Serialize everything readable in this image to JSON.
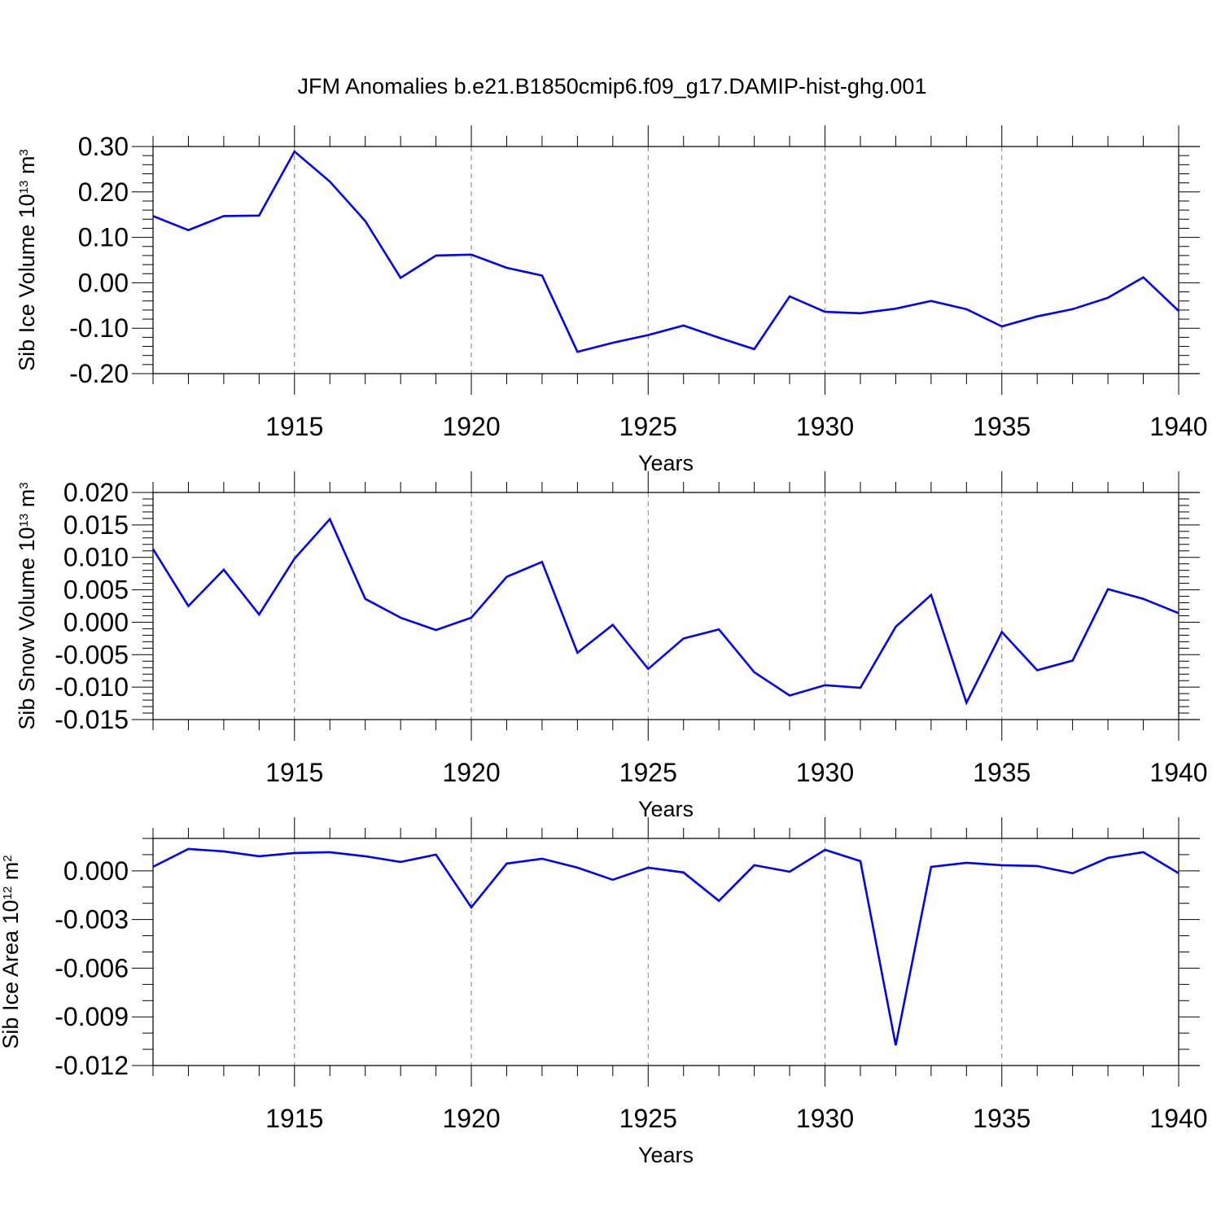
{
  "title": "JFM Anomalies b.e21.B1850cmip6.f09_g17.DAMIP-hist-ghg.001",
  "colors": {
    "line": "#0000ff",
    "axis": "#000000",
    "grid": "#7f7f7f"
  },
  "chart_data": [
    {
      "type": "line",
      "ylabel": {
        "base": "Sib Ice Volume 10",
        "exp": "13",
        "unit": " m",
        "unit_exp": "3"
      },
      "xlabel": "Years",
      "xlim": [
        1911,
        1940
      ],
      "ylim": [
        -0.2,
        0.3
      ],
      "yticks": [
        -0.2,
        -0.1,
        0.0,
        0.1,
        0.2,
        0.3
      ],
      "ytick_labels": [
        "-0.20",
        "-0.10",
        "0.00",
        "0.10",
        "0.20",
        "0.30"
      ],
      "xticks": [
        1915,
        1920,
        1925,
        1930,
        1935,
        1940
      ],
      "xtick_labels": [
        "1915",
        "1920",
        "1925",
        "1930",
        "1935",
        "1940"
      ],
      "grid": "vertical dashed at major x ticks",
      "x": [
        1911,
        1912,
        1913,
        1914,
        1915,
        1916,
        1917,
        1918,
        1919,
        1920,
        1921,
        1922,
        1923,
        1924,
        1925,
        1926,
        1927,
        1928,
        1929,
        1930,
        1931,
        1932,
        1933,
        1934,
        1935,
        1936,
        1937,
        1938,
        1939,
        1940
      ],
      "values": [
        0.147,
        0.116,
        0.147,
        0.148,
        0.289,
        0.223,
        0.136,
        0.011,
        0.06,
        0.062,
        0.033,
        0.016,
        -0.152,
        -0.132,
        -0.115,
        -0.094,
        -0.121,
        -0.146,
        -0.03,
        -0.064,
        -0.067,
        -0.057,
        -0.04,
        -0.058,
        -0.096,
        -0.074,
        -0.058,
        -0.033,
        0.012,
        -0.062
      ]
    },
    {
      "type": "line",
      "ylabel": {
        "base": "Sib Snow Volume 10",
        "exp": "13",
        "unit": " m",
        "unit_exp": "3"
      },
      "xlabel": "Years",
      "xlim": [
        1911,
        1940
      ],
      "ylim": [
        -0.015,
        0.02
      ],
      "yticks": [
        -0.015,
        -0.01,
        -0.005,
        0.0,
        0.005,
        0.01,
        0.015,
        0.02
      ],
      "ytick_labels": [
        "-0.015",
        "-0.010",
        "-0.005",
        "0.000",
        "0.005",
        "0.010",
        "0.015",
        "0.020"
      ],
      "xticks": [
        1915,
        1920,
        1925,
        1930,
        1935,
        1940
      ],
      "xtick_labels": [
        "1915",
        "1920",
        "1925",
        "1930",
        "1935",
        "1940"
      ],
      "grid": "vertical dashed at major x ticks",
      "x": [
        1911,
        1912,
        1913,
        1914,
        1915,
        1916,
        1917,
        1918,
        1919,
        1920,
        1921,
        1922,
        1923,
        1924,
        1925,
        1926,
        1927,
        1928,
        1929,
        1930,
        1931,
        1932,
        1933,
        1934,
        1935,
        1936,
        1937,
        1938,
        1939,
        1940
      ],
      "values": [
        0.0113,
        0.0025,
        0.0081,
        0.0012,
        0.0098,
        0.0159,
        0.0036,
        0.0007,
        -0.0012,
        0.0007,
        0.007,
        0.0093,
        -0.0047,
        -0.0004,
        -0.0072,
        -0.0025,
        -0.0011,
        -0.0077,
        -0.0113,
        -0.0097,
        -0.0101,
        -0.0007,
        0.0042,
        -0.0124,
        -0.0015,
        -0.0074,
        -0.0059,
        0.0051,
        0.0036,
        0.0014
      ]
    },
    {
      "type": "line",
      "ylabel": {
        "base": "Sib Ice Area 10",
        "exp": "12",
        "unit": " m",
        "unit_exp": "2"
      },
      "xlabel": "Years",
      "xlim": [
        1911,
        1940
      ],
      "ylim": [
        -0.012,
        0.002
      ],
      "yticks": [
        -0.012,
        -0.009,
        -0.006,
        -0.003,
        0.0
      ],
      "ytick_labels": [
        "-0.012",
        "-0.009",
        "-0.006",
        "-0.003",
        "0.000"
      ],
      "xticks": [
        1915,
        1920,
        1925,
        1930,
        1935,
        1940
      ],
      "xtick_labels": [
        "1915",
        "1920",
        "1925",
        "1930",
        "1935",
        "1940"
      ],
      "grid": "vertical dashed at major x ticks",
      "x": [
        1911,
        1912,
        1913,
        1914,
        1915,
        1916,
        1917,
        1918,
        1919,
        1920,
        1921,
        1922,
        1923,
        1924,
        1925,
        1926,
        1927,
        1928,
        1929,
        1930,
        1931,
        1932,
        1933,
        1934,
        1935,
        1936,
        1937,
        1938,
        1939,
        1940
      ],
      "values": [
        0.00025,
        0.00135,
        0.0012,
        0.0009,
        0.0011,
        0.00115,
        0.0009,
        0.00055,
        0.001,
        -0.00225,
        0.00045,
        0.00075,
        0.0002,
        -0.00055,
        0.0002,
        -0.0001,
        -0.00185,
        0.00035,
        -5e-05,
        0.0013,
        0.0006,
        -0.01075,
        0.00025,
        0.0005,
        0.00035,
        0.0003,
        -0.00015,
        0.0008,
        0.00115,
        -0.00015
      ]
    }
  ]
}
